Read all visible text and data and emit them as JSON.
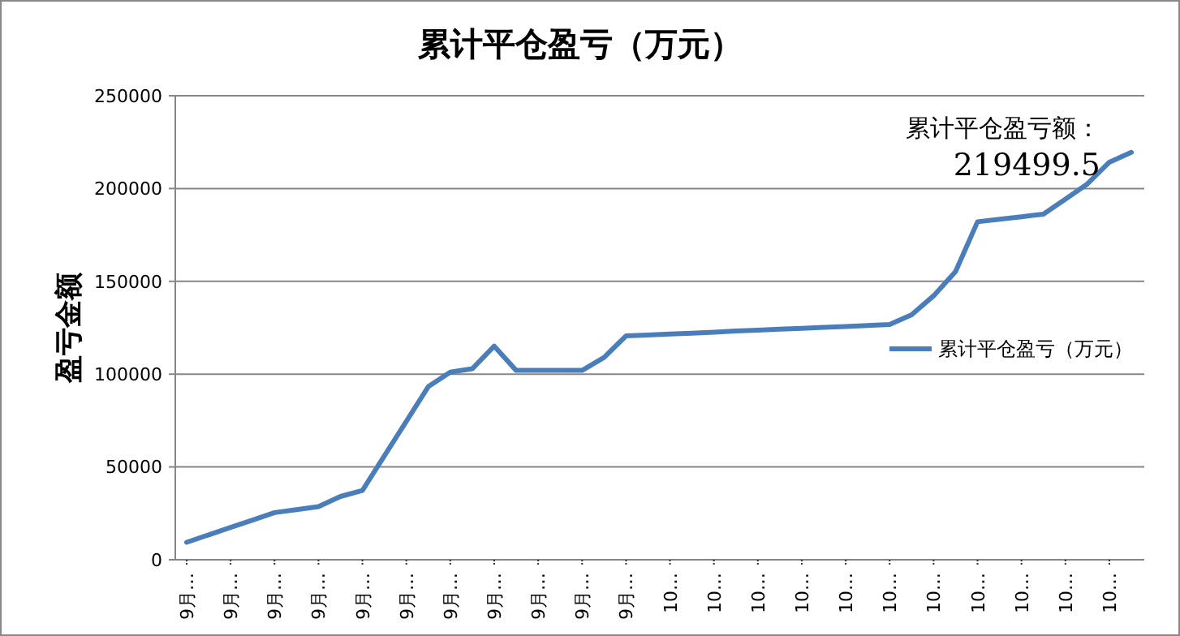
{
  "chart_data": {
    "type": "line",
    "title": "累计平仓盈亏（万元）",
    "ylabel": "盈亏金额",
    "categories": [
      "9月…",
      null,
      "9月…",
      null,
      "9月…",
      null,
      "9月…",
      null,
      "9月…",
      null,
      "9月…",
      null,
      "9月…",
      null,
      "9月…",
      null,
      "9月…",
      null,
      "9月…",
      null,
      "9月…",
      null,
      "10…",
      null,
      "10…",
      null,
      "10…",
      null,
      "10…",
      null,
      "10…",
      null,
      "10…",
      null,
      "10…",
      null,
      "10…",
      null,
      "10…",
      null,
      "10…",
      null,
      "10…",
      null
    ],
    "series": [
      {
        "name": "累计平仓盈亏（万元）",
        "color": "#4a7ebb",
        "values": [
          9400,
          13400,
          17400,
          21400,
          25400,
          27000,
          28600,
          34100,
          37300,
          56000,
          74600,
          93300,
          101100,
          102900,
          115100,
          102000,
          102000,
          102000,
          102000,
          109000,
          120600,
          121100,
          121600,
          122100,
          122600,
          123200,
          123700,
          124200,
          124700,
          125200,
          125700,
          126200,
          126700,
          132000,
          142200,
          155300,
          182100,
          183500,
          184800,
          186200,
          194300,
          202500,
          214200,
          219499.5
        ]
      }
    ],
    "ylim": [
      0,
      250000
    ],
    "yticks": [
      0,
      50000,
      100000,
      150000,
      200000,
      250000
    ],
    "grid": "y",
    "legend": "right",
    "marker": "none",
    "line_style": "solid",
    "annotations": [
      "累计平仓盈亏额：",
      "219499.5"
    ]
  }
}
